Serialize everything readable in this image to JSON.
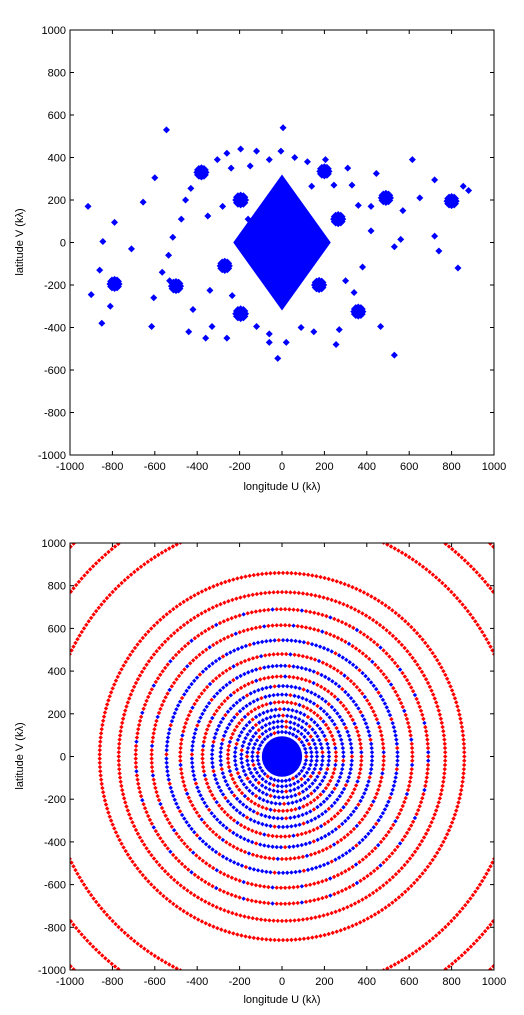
{
  "chart_data": [
    {
      "type": "scatter",
      "xlabel": "longitude U (kλ)",
      "ylabel": "latitude V (kλ)",
      "xlim": [
        -1000,
        1000
      ],
      "ylim": [
        -1000,
        1000
      ],
      "xticks": [
        -1000,
        -800,
        -600,
        -400,
        -200,
        0,
        200,
        400,
        600,
        800,
        1000
      ],
      "yticks": [
        -1000,
        -800,
        -600,
        -400,
        -200,
        0,
        200,
        400,
        600,
        800,
        1000
      ],
      "grid": false,
      "color": "#0000ff",
      "marker": "diamond",
      "central_cluster": {
        "center": [
          0,
          0
        ],
        "extent_u": 230,
        "extent_v": 320
      },
      "clusters": [
        {
          "u": -380,
          "v": 330,
          "r": 30
        },
        {
          "u": 200,
          "v": 335,
          "r": 30
        },
        {
          "u": -195,
          "v": 200,
          "r": 32
        },
        {
          "u": 490,
          "v": 210,
          "r": 30
        },
        {
          "u": 800,
          "v": 195,
          "r": 30
        },
        {
          "u": 265,
          "v": 110,
          "r": 30
        },
        {
          "u": -270,
          "v": -110,
          "r": 30
        },
        {
          "u": -500,
          "v": -205,
          "r": 30
        },
        {
          "u": -790,
          "v": -195,
          "r": 30
        },
        {
          "u": 175,
          "v": -200,
          "r": 30
        },
        {
          "u": -195,
          "v": -335,
          "r": 32
        },
        {
          "u": 360,
          "v": -325,
          "r": 30
        }
      ],
      "isolated_points": [
        [
          -545,
          530
        ],
        [
          5,
          540
        ],
        [
          -240,
          350
        ],
        [
          -150,
          360
        ],
        [
          310,
          350
        ],
        [
          445,
          325
        ],
        [
          615,
          390
        ],
        [
          720,
          295
        ],
        [
          855,
          265
        ],
        [
          -600,
          305
        ],
        [
          -430,
          255
        ],
        [
          -305,
          390
        ],
        [
          -260,
          420
        ],
        [
          -120,
          430
        ],
        [
          -195,
          440
        ],
        [
          -60,
          390
        ],
        [
          60,
          400
        ],
        [
          120,
          380
        ],
        [
          245,
          270
        ],
        [
          330,
          270
        ],
        [
          -655,
          190
        ],
        [
          -790,
          95
        ],
        [
          -845,
          5
        ],
        [
          -915,
          170
        ],
        [
          -860,
          -130
        ],
        [
          -710,
          -30
        ],
        [
          -565,
          -140
        ],
        [
          -605,
          -260
        ],
        [
          -615,
          -395
        ],
        [
          -440,
          -420
        ],
        [
          -330,
          -395
        ],
        [
          -420,
          -315
        ],
        [
          -235,
          -250
        ],
        [
          -340,
          -225
        ],
        [
          -515,
          25
        ],
        [
          -475,
          110
        ],
        [
          -455,
          200
        ],
        [
          -350,
          125
        ],
        [
          -535,
          -60
        ],
        [
          -110,
          35
        ],
        [
          140,
          265
        ],
        [
          205,
          390
        ],
        [
          -5,
          430
        ],
        [
          340,
          -235
        ],
        [
          420,
          55
        ],
        [
          380,
          -115
        ],
        [
          530,
          -20
        ],
        [
          560,
          15
        ],
        [
          465,
          -395
        ],
        [
          530,
          -530
        ],
        [
          -20,
          -545
        ],
        [
          -120,
          -395
        ],
        [
          90,
          -400
        ],
        [
          150,
          -420
        ],
        [
          -360,
          -450
        ],
        [
          -260,
          -450
        ],
        [
          270,
          -410
        ],
        [
          300,
          -180
        ],
        [
          360,
          175
        ],
        [
          420,
          170
        ],
        [
          720,
          30
        ],
        [
          740,
          -40
        ],
        [
          830,
          -120
        ],
        [
          880,
          245
        ],
        [
          -900,
          -245
        ],
        [
          -810,
          -300
        ],
        [
          -850,
          -380
        ],
        [
          255,
          -480
        ],
        [
          -60,
          -470
        ],
        [
          20,
          -470
        ],
        [
          570,
          150
        ],
        [
          650,
          210
        ],
        [
          -280,
          170
        ],
        [
          -160,
          110
        ],
        [
          -530,
          -180
        ],
        [
          -60,
          -430
        ]
      ]
    },
    {
      "type": "scatter",
      "xlabel": "longitude U (kλ)",
      "ylabel": "latitude V (kλ)",
      "xlim": [
        -1000,
        1000
      ],
      "ylim": [
        -1000,
        1000
      ],
      "xticks": [
        -1000,
        -800,
        -600,
        -400,
        -200,
        0,
        200,
        400,
        600,
        800,
        1000
      ],
      "yticks": [
        -1000,
        -800,
        -600,
        -400,
        -200,
        0,
        200,
        400,
        600,
        800,
        1000
      ],
      "grid": false,
      "central_disk_radius": 95,
      "rings": [
        {
          "r": 115,
          "color": "#0000ff"
        },
        {
          "r": 140,
          "color": "#0000ff"
        },
        {
          "r": 165,
          "color": "#0000ff"
        },
        {
          "r": 192,
          "color": "#0000ff"
        },
        {
          "r": 222,
          "color": "#0000ff"
        },
        {
          "r": 255,
          "color": "#ff0000"
        },
        {
          "r": 290,
          "color": "#0000ff"
        },
        {
          "r": 330,
          "color": "#0000ff"
        },
        {
          "r": 375,
          "color": "#ff0000"
        },
        {
          "r": 425,
          "color": "#0000ff"
        },
        {
          "r": 480,
          "color": "#ff0000"
        },
        {
          "r": 545,
          "color": "#0000ff"
        },
        {
          "r": 615,
          "color": "#ff0000"
        },
        {
          "r": 690,
          "color": "#ff0000"
        },
        {
          "r": 770,
          "color": "#ff0000"
        },
        {
          "r": 860,
          "color": "#ff0000"
        },
        {
          "r": 1110,
          "color": "#ff0000"
        },
        {
          "r": 1260,
          "color": "#ff0000"
        },
        {
          "r": 1400,
          "color": "#ff0000"
        }
      ]
    }
  ]
}
